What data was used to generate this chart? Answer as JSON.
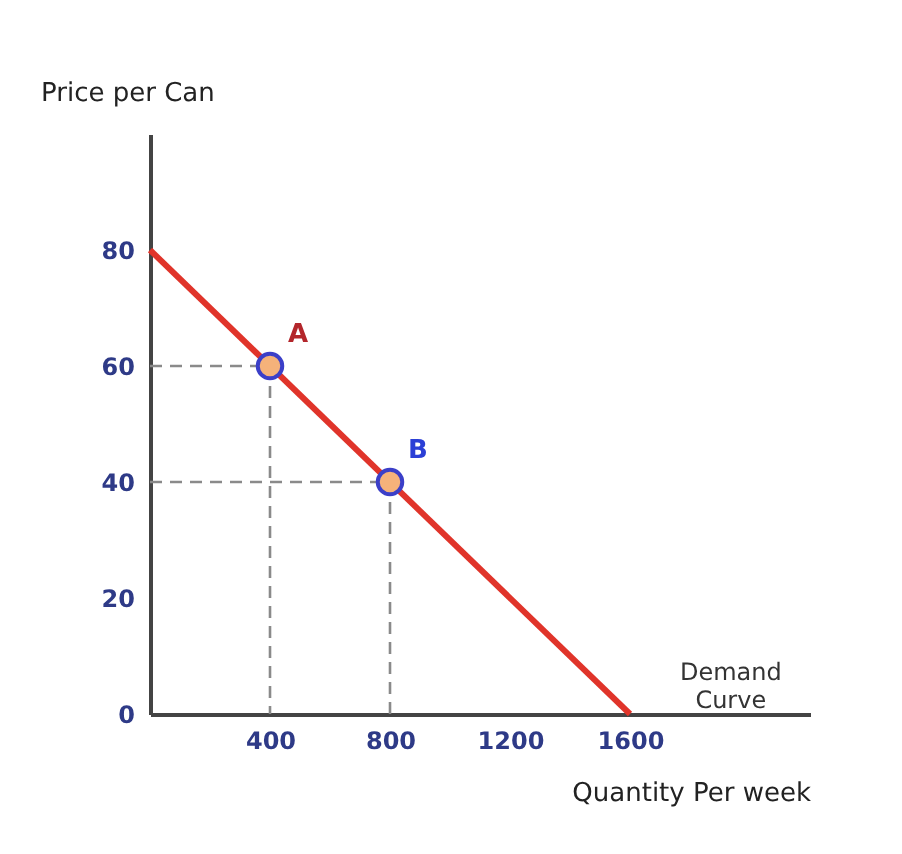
{
  "chart_data": {
    "type": "line",
    "ylabel": "Price per Can",
    "xlabel": "Quantity Per week",
    "xlim": [
      0,
      2200
    ],
    "xticks": [
      400,
      800,
      1200,
      1600
    ],
    "ylim": [
      0,
      100
    ],
    "yticks": [
      0,
      20,
      40,
      60,
      80
    ],
    "grid": false,
    "series": [
      {
        "color": "#e0342a",
        "x": [
          0,
          1600
        ],
        "values": [
          80,
          0
        ],
        "line_style": "solid"
      },
      {
        "color": "#8a8a8a",
        "x": [
          0,
          400,
          400
        ],
        "values": [
          60,
          60,
          0
        ],
        "line_style": "dashed"
      },
      {
        "color": "#8a8a8a",
        "x": [
          0,
          800,
          800
        ],
        "values": [
          40,
          40,
          0
        ],
        "line_style": "dashed"
      },
      {
        "type": "scatter",
        "color": "#3b3fc8",
        "x": [
          400,
          800
        ],
        "values": [
          60,
          40
        ],
        "marker": "circle"
      }
    ],
    "annotations": [
      {
        "text": "A",
        "x": 400,
        "y": 60
      },
      {
        "text": "B",
        "x": 800,
        "y": 40
      },
      "Demand Curve"
    ]
  }
}
